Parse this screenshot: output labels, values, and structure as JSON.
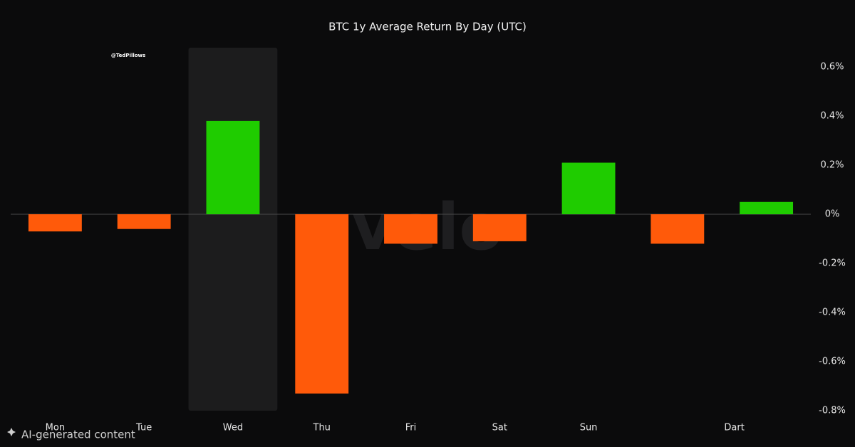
{
  "chart_data": {
    "type": "bar",
    "title": "BTC 1y Average Return By Day (UTC)",
    "annotations": {
      "handle": "@TedPillows",
      "watermark": "velo",
      "badge": "AI-generated content"
    },
    "categories": [
      "Mon",
      "Tue",
      "Wed",
      "Thu",
      "Fri",
      "Sat",
      "Sun",
      null,
      "Dart"
    ],
    "values": [
      -0.07,
      -0.06,
      0.38,
      -0.73,
      -0.12,
      -0.11,
      0.21,
      -0.12,
      0.05
    ],
    "colors": {
      "positive": "#1fcc00",
      "negative": "#ff5a0a"
    },
    "highlight": "Wed",
    "ylim": [
      -0.8,
      0.6
    ],
    "yticks": [
      {
        "value": 0.6,
        "label": "0.6%"
      },
      {
        "value": 0.4,
        "label": "0.4%"
      },
      {
        "value": 0.2,
        "label": "0.2%"
      },
      {
        "value": 0,
        "label": "0%"
      },
      {
        "value": -0.2,
        "label": "-0.2%"
      },
      {
        "value": -0.4,
        "label": "-0.4%"
      },
      {
        "value": -0.6,
        "label": "-0.6%"
      },
      {
        "value": -0.8,
        "label": "-0.8%"
      }
    ]
  }
}
